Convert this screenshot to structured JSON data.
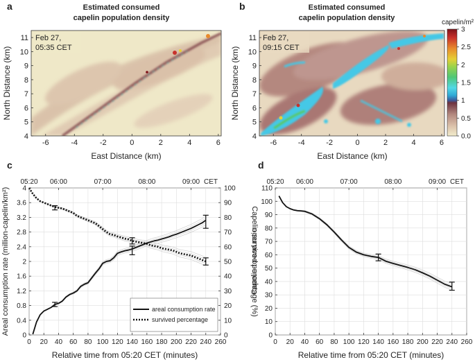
{
  "chart_data": [
    {
      "panel": "a",
      "type": "heatmap",
      "title_line1": "Estimated consumed",
      "title_line2": "capelin population density",
      "annotation_line1": "Feb 27,",
      "annotation_line2": "05:35 CET",
      "xlabel": "East Distance (km)",
      "ylabel": "North Distance (km)",
      "xlim": [
        -7,
        6.2
      ],
      "ylim": [
        4,
        11.5
      ],
      "xticks": [
        "-6",
        "-4",
        "-2",
        "0",
        "2",
        "4",
        "6"
      ],
      "yticks": [
        "4",
        "5",
        "6",
        "7",
        "8",
        "9",
        "10",
        "11"
      ]
    },
    {
      "panel": "b",
      "type": "heatmap",
      "title_line1": "Estimated consumed",
      "title_line2": "capelin population density",
      "annotation_line1": "Feb 27,",
      "annotation_line2": "09:15 CET",
      "xlabel": "East Distance (km)",
      "ylabel": "North Distance (km)",
      "xlim": [
        -7,
        6.2
      ],
      "ylim": [
        4,
        11.5
      ],
      "xticks": [
        "-6",
        "-4",
        "-2",
        "0",
        "2",
        "4",
        "6"
      ],
      "yticks": [
        "4",
        "5",
        "6",
        "7",
        "8",
        "9",
        "10",
        "11"
      ],
      "colorbar_title": "capelin/m²",
      "colorbar_ticks": [
        "3",
        "2.5",
        "2",
        "1.5",
        "1",
        "0.5",
        "0.0"
      ],
      "colorbar_range": [
        0,
        3
      ]
    },
    {
      "panel": "c",
      "type": "line",
      "xlabel": "Relative time from 05:20 CET (minutes)",
      "ylabel_left": "Areal consumption rate (million-capelin/km²)",
      "ylabel_right": "Capelin survived percentage (%)",
      "xlim": [
        0,
        260
      ],
      "ylim_left": [
        0,
        4
      ],
      "ylim_right": [
        0,
        100
      ],
      "xticks": [
        "0",
        "20",
        "40",
        "60",
        "80",
        "100",
        "120",
        "140",
        "160",
        "180",
        "200",
        "220",
        "240",
        "260"
      ],
      "yticks_left": [
        "0",
        "0.4",
        "0.8",
        "1.2",
        "1.6",
        "2",
        "2.4",
        "2.8",
        "3.2",
        "3.6",
        "4"
      ],
      "yticks_right": [
        "0",
        "10",
        "20",
        "30",
        "40",
        "50",
        "60",
        "70",
        "80",
        "90",
        "100"
      ],
      "top_axis_ticks": [
        "05:20",
        "06:00",
        "07:00",
        "08:00",
        "09:00",
        "CET"
      ],
      "legend": [
        "areal consumption rate",
        "survived percentage"
      ],
      "series": [
        {
          "name": "areal consumption rate",
          "axis": "left",
          "style": "solid",
          "x": [
            5,
            10,
            15,
            20,
            25,
            30,
            35,
            40,
            45,
            50,
            55,
            60,
            65,
            70,
            75,
            80,
            85,
            90,
            95,
            100,
            105,
            110,
            115,
            120,
            125,
            130,
            135,
            140,
            145,
            150,
            155,
            160,
            165,
            170,
            175,
            180,
            185,
            190,
            195,
            200,
            205,
            210,
            215,
            220,
            225,
            230,
            235,
            240
          ],
          "y": [
            0.02,
            0.35,
            0.55,
            0.65,
            0.7,
            0.75,
            0.83,
            0.86,
            0.92,
            1.03,
            1.1,
            1.14,
            1.2,
            1.32,
            1.38,
            1.42,
            1.55,
            1.68,
            1.8,
            1.95,
            2.0,
            2.02,
            2.1,
            2.22,
            2.26,
            2.29,
            2.31,
            2.34,
            2.38,
            2.42,
            2.46,
            2.5,
            2.53,
            2.56,
            2.58,
            2.61,
            2.64,
            2.67,
            2.71,
            2.74,
            2.78,
            2.82,
            2.86,
            2.9,
            2.95,
            3.0,
            3.05,
            3.12
          ]
        },
        {
          "name": "survived percentage",
          "axis": "right",
          "style": "dotted",
          "x": [
            0,
            5,
            10,
            15,
            20,
            25,
            30,
            35,
            40,
            45,
            50,
            55,
            60,
            65,
            70,
            75,
            80,
            85,
            90,
            95,
            100,
            105,
            110,
            115,
            120,
            125,
            130,
            135,
            140,
            145,
            150,
            155,
            160,
            165,
            170,
            175,
            180,
            185,
            190,
            195,
            200,
            205,
            210,
            215,
            220,
            225,
            230,
            235,
            240
          ],
          "y": [
            100,
            96,
            93,
            91,
            90,
            89,
            88,
            87,
            86.5,
            86,
            85,
            84,
            83,
            81,
            80,
            79,
            78,
            77,
            76,
            74,
            72,
            70,
            68.5,
            68,
            67,
            66.3,
            65.5,
            65,
            64,
            63.5,
            63,
            62.5,
            62,
            61,
            60.5,
            60,
            59,
            58.5,
            58,
            57.5,
            56.5,
            55.5,
            55,
            54.5,
            54,
            53,
            52,
            51,
            50
          ]
        }
      ],
      "error_bars": [
        {
          "axis": "left",
          "x": 35,
          "y": 0.83,
          "err": 0.02
        },
        {
          "axis": "left",
          "x": 140,
          "y": 2.3,
          "err": 0.08
        },
        {
          "axis": "left",
          "x": 240,
          "y": 3.08,
          "err": 0.14
        },
        {
          "axis": "right",
          "x": 35,
          "y": 86.5,
          "err": 0.5
        },
        {
          "axis": "right",
          "x": 140,
          "y": 64,
          "err": 1.2
        },
        {
          "axis": "right",
          "x": 240,
          "y": 50,
          "err": 1.5
        }
      ]
    },
    {
      "panel": "d",
      "type": "line",
      "xlabel": "Relative time from 05:20 CET (minutes)",
      "ylabel": "Capelin-to-cod ratio",
      "xlim": [
        0,
        260
      ],
      "ylim": [
        0,
        110
      ],
      "xticks": [
        "0",
        "20",
        "40",
        "60",
        "80",
        "100",
        "120",
        "140",
        "160",
        "180",
        "200",
        "220",
        "240",
        "260"
      ],
      "yticks": [
        "0",
        "10",
        "20",
        "30",
        "40",
        "50",
        "60",
        "70",
        "80",
        "90",
        "100",
        "110"
      ],
      "top_axis_ticks": [
        "05:20",
        "06:00",
        "07:00",
        "08:00",
        "09:00",
        "CET"
      ],
      "series": [
        {
          "name": "capelin-to-cod ratio",
          "style": "solid",
          "x": [
            5,
            10,
            15,
            20,
            25,
            30,
            35,
            40,
            50,
            60,
            70,
            80,
            90,
            100,
            110,
            120,
            130,
            140,
            150,
            160,
            170,
            180,
            190,
            200,
            210,
            220,
            230,
            240
          ],
          "y": [
            104,
            99,
            96,
            94.5,
            93.5,
            93,
            92.8,
            92.5,
            90.5,
            87,
            82.5,
            77,
            71,
            65.5,
            62,
            60,
            58.8,
            58,
            55.2,
            53.5,
            52,
            50.5,
            48.8,
            46.5,
            44,
            41,
            38,
            36
          ]
        }
      ],
      "error_bars": [
        {
          "x": 140,
          "y": 58,
          "err": 1.5
        },
        {
          "x": 240,
          "y": 36.5,
          "err": 2
        }
      ]
    }
  ],
  "panel_labels": {
    "a": "a",
    "b": "b",
    "c": "c",
    "d": "d"
  },
  "colors": {
    "ink": "#111111",
    "grid": "#dddddd",
    "confidence": "#cfcfcf",
    "map_base": "#efe8c8",
    "map_mid": "#b98a7a",
    "map_high": "#6e2f3a",
    "map_cyan": "#44c8e6",
    "map_green": "#58c86a",
    "map_red": "#c8322c"
  }
}
